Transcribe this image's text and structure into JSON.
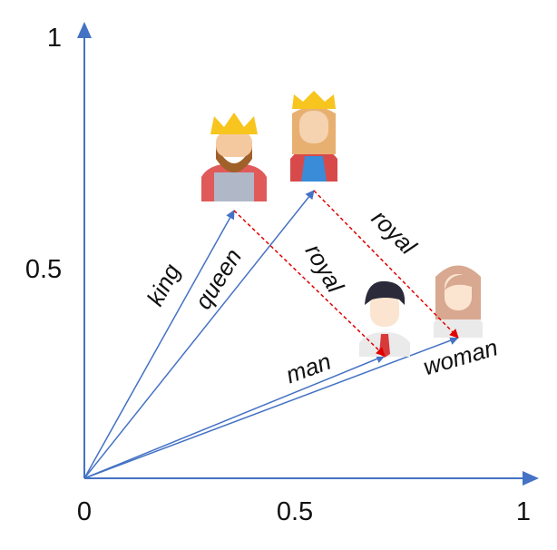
{
  "axes": {
    "x_ticks": [
      "0",
      "0.5",
      "1"
    ],
    "y_ticks": [
      "1",
      "0.5"
    ]
  },
  "vectors": [
    {
      "label": "king"
    },
    {
      "label": "queen"
    },
    {
      "label": "man"
    },
    {
      "label": "woman"
    }
  ],
  "differences": [
    {
      "label": "royal"
    },
    {
      "label": "royal"
    }
  ]
}
